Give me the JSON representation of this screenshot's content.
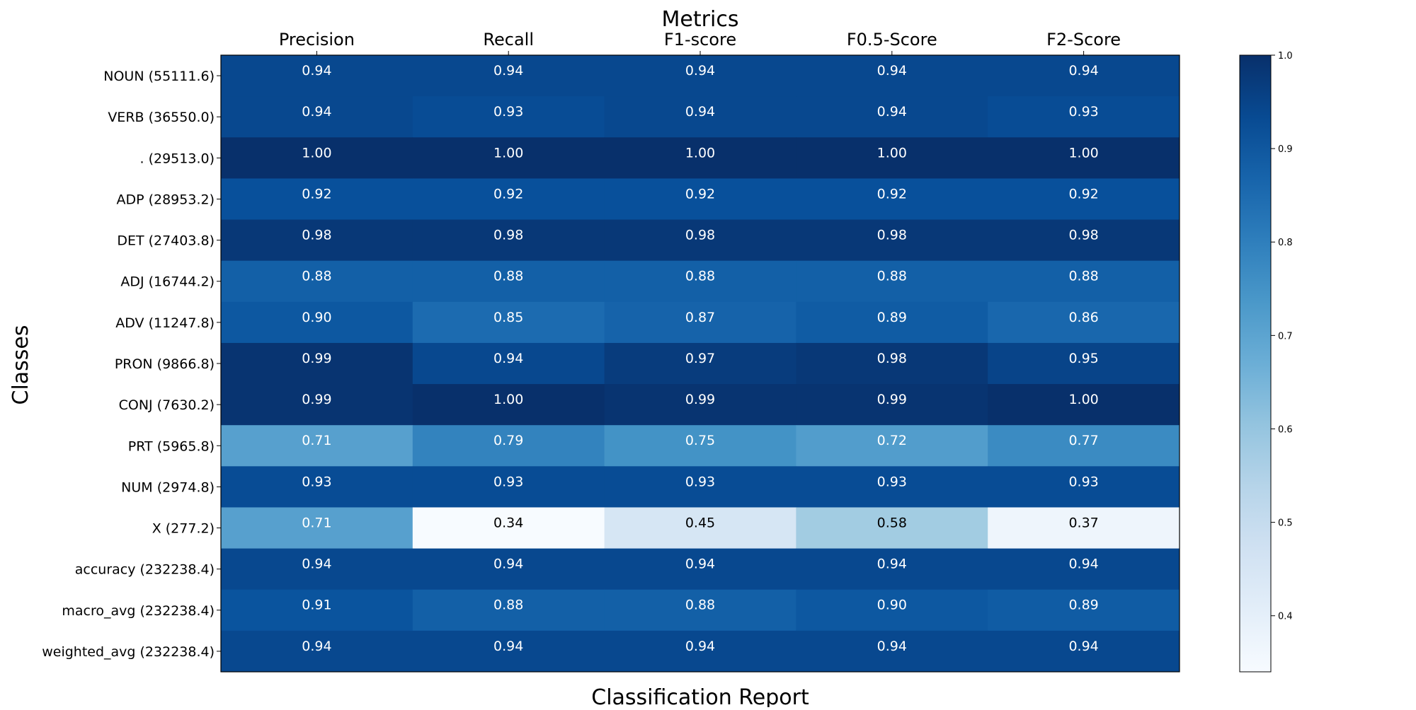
{
  "chart_data": {
    "type": "heatmap",
    "title": "Metrics",
    "xlabel": "Classification Report",
    "ylabel": "Classes",
    "columns": [
      "Precision",
      "Recall",
      "F1-score",
      "F0.5-Score",
      "F2-Score"
    ],
    "rows": [
      "NOUN (55111.6)",
      "VERB (36550.0)",
      ". (29513.0)",
      "ADP (28953.2)",
      "DET (27403.8)",
      "ADJ (16744.2)",
      "ADV (11247.8)",
      "PRON (9866.8)",
      "CONJ (7630.2)",
      "PRT (5965.8)",
      "NUM (2974.8)",
      "X (277.2)",
      "accuracy (232238.4)",
      "macro_avg (232238.4)",
      "weighted_avg (232238.4)"
    ],
    "values": [
      [
        0.94,
        0.94,
        0.94,
        0.94,
        0.94
      ],
      [
        0.94,
        0.93,
        0.94,
        0.94,
        0.93
      ],
      [
        1.0,
        1.0,
        1.0,
        1.0,
        1.0
      ],
      [
        0.92,
        0.92,
        0.92,
        0.92,
        0.92
      ],
      [
        0.98,
        0.98,
        0.98,
        0.98,
        0.98
      ],
      [
        0.88,
        0.88,
        0.88,
        0.88,
        0.88
      ],
      [
        0.9,
        0.85,
        0.87,
        0.89,
        0.86
      ],
      [
        0.99,
        0.94,
        0.97,
        0.98,
        0.95
      ],
      [
        0.99,
        1.0,
        0.99,
        0.99,
        1.0
      ],
      [
        0.71,
        0.79,
        0.75,
        0.72,
        0.77
      ],
      [
        0.93,
        0.93,
        0.93,
        0.93,
        0.93
      ],
      [
        0.71,
        0.34,
        0.45,
        0.58,
        0.37
      ],
      [
        0.94,
        0.94,
        0.94,
        0.94,
        0.94
      ],
      [
        0.91,
        0.88,
        0.88,
        0.9,
        0.89
      ],
      [
        0.94,
        0.94,
        0.94,
        0.94,
        0.94
      ]
    ],
    "value_format": "2 decimals",
    "colormap": "Blues",
    "color_range": [
      0.34,
      1.0
    ],
    "colorbar_ticks": [
      "0.4",
      "0.5",
      "0.6",
      "0.7",
      "0.8",
      "0.9",
      "1.0"
    ],
    "colorbar_position": "right",
    "x_axis_position": "top",
    "grid": false,
    "legend": "none"
  }
}
